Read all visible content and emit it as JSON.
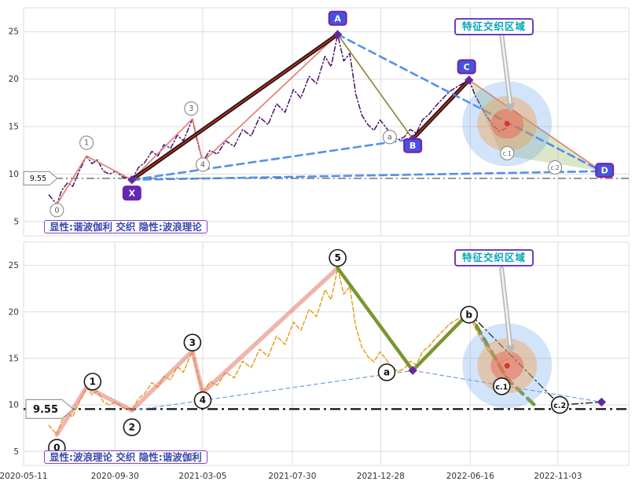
{
  "chart_data": {
    "type": "line",
    "title": "",
    "x_ticks": [
      {
        "label": "2020-05-11",
        "pos": 0
      },
      {
        "label": "2020-09-30",
        "pos": 15.1
      },
      {
        "label": "2021-03-05",
        "pos": 29.6
      },
      {
        "label": "2021-07-30",
        "pos": 44.4
      },
      {
        "label": "2021-12-28",
        "pos": 59.0
      },
      {
        "label": "2022-06-16",
        "pos": 73.8
      },
      {
        "label": "2022-11-03",
        "pos": 88.3
      }
    ],
    "y_ticks": [
      5,
      10,
      15,
      20,
      25
    ],
    "ylim": [
      3.5,
      27.5
    ],
    "reference_price": 9.55,
    "price": [
      [
        4.2,
        7.8
      ],
      [
        5.5,
        6.8
      ],
      [
        6.3,
        8.3
      ],
      [
        7.3,
        9.1
      ],
      [
        8.1,
        8.7
      ],
      [
        9.2,
        10.3
      ],
      [
        10.4,
        11.9
      ],
      [
        11.3,
        11.1
      ],
      [
        12.2,
        11.5
      ],
      [
        13.2,
        10.3
      ],
      [
        14.2,
        10.0
      ],
      [
        15.2,
        10.3
      ],
      [
        16.4,
        9.7
      ],
      [
        17.9,
        9.4
      ],
      [
        19.0,
        10.7
      ],
      [
        20.0,
        11.2
      ],
      [
        21.2,
        12.4
      ],
      [
        22.2,
        11.9
      ],
      [
        23.2,
        13.1
      ],
      [
        24.3,
        12.7
      ],
      [
        25.4,
        14.1
      ],
      [
        26.4,
        13.5
      ],
      [
        27.9,
        15.8
      ],
      [
        28.6,
        13.7
      ],
      [
        29.6,
        11.3
      ],
      [
        30.8,
        12.5
      ],
      [
        32.0,
        12.1
      ],
      [
        33.4,
        13.5
      ],
      [
        34.8,
        12.9
      ],
      [
        36.2,
        14.7
      ],
      [
        37.6,
        14.0
      ],
      [
        39.0,
        16.0
      ],
      [
        40.4,
        15.2
      ],
      [
        41.8,
        17.4
      ],
      [
        43.2,
        16.5
      ],
      [
        44.6,
        18.9
      ],
      [
        45.8,
        18.0
      ],
      [
        47.2,
        20.3
      ],
      [
        48.4,
        19.5
      ],
      [
        49.8,
        22.4
      ],
      [
        50.8,
        21.3
      ],
      [
        51.9,
        24.7
      ],
      [
        52.9,
        21.9
      ],
      [
        53.9,
        22.7
      ],
      [
        54.9,
        18.4
      ],
      [
        55.9,
        16.2
      ],
      [
        56.9,
        15.2
      ],
      [
        57.9,
        14.6
      ],
      [
        58.9,
        15.7
      ],
      [
        59.9,
        14.9
      ],
      [
        60.9,
        14.0
      ],
      [
        61.9,
        13.6
      ],
      [
        62.9,
        13.9
      ],
      [
        63.9,
        14.7
      ],
      [
        64.9,
        14.3
      ],
      [
        65.9,
        15.7
      ],
      [
        67.0,
        16.3
      ],
      [
        68.0,
        17.1
      ],
      [
        69.2,
        17.9
      ],
      [
        70.4,
        18.7
      ],
      [
        71.9,
        19.3
      ],
      [
        73.6,
        19.9
      ],
      [
        74.6,
        18.3
      ],
      [
        75.6,
        17.1
      ],
      [
        76.6,
        16.0
      ],
      [
        77.6,
        15.1
      ],
      [
        78.6,
        14.5
      ],
      [
        79.9,
        14.9
      ]
    ],
    "colors": {
      "price_top": "#45106e",
      "price_bottom": "#e6a023",
      "impulse_salmon": "#e2796a",
      "black_trend": "#161616",
      "red_core": "#cc2a1e",
      "blue_dashed": "#4285e8",
      "blue_thin": "#6a96cf",
      "green_overlay": "#74942c",
      "green_fill": "rgba(140,175,80,0.30)",
      "marker_purple": "#5a2ca0",
      "box_blue": "#4553dd",
      "box_purple": "#5e2bb8",
      "purple_border": "#7b1fa2",
      "teal": "#00a6b8",
      "caption_blue": "#3949ab",
      "feature_outer": "rgba(105,165,235,0.30)",
      "feature_mid": "rgba(245,152,62,0.38)",
      "feature_inner": "rgba(236,92,78,0.45)",
      "feature_dot": "#d6372b",
      "grid": "#dcdcdc",
      "axis_text": "#333333",
      "ref_line": "#444444"
    },
    "panels": [
      {
        "name": "harmonic-explicit-panel",
        "price_style": "purple-dashdot",
        "caption": "显性:谐波伽利 交织 隐性:波浪理论",
        "feature_label": "特征交织区域",
        "feature_center": {
          "x": 79.9,
          "v": 15.3
        },
        "lines": [
          {
            "style": "salmon-thin",
            "points": [
              [
                5.5,
                6.8
              ],
              [
                10.4,
                11.9
              ],
              [
                17.9,
                9.4
              ],
              [
                27.9,
                15.8
              ],
              [
                29.6,
                11.3
              ],
              [
                51.9,
                24.7
              ],
              [
                64.3,
                13.7
              ],
              [
                73.6,
                19.9
              ],
              [
                95.5,
                10.3
              ]
            ]
          },
          {
            "style": "green-thin",
            "points": [
              [
                51.9,
                24.7
              ],
              [
                64.3,
                13.7
              ]
            ]
          },
          {
            "style": "black-thick",
            "points": [
              [
                17.9,
                9.4
              ],
              [
                51.9,
                24.7
              ]
            ]
          },
          {
            "style": "red-core",
            "points": [
              [
                17.9,
                9.4
              ],
              [
                51.9,
                24.7
              ]
            ]
          },
          {
            "style": "black-thick",
            "points": [
              [
                64.3,
                13.7
              ],
              [
                73.6,
                19.9
              ]
            ]
          },
          {
            "style": "red-core",
            "points": [
              [
                64.3,
                13.7
              ],
              [
                73.6,
                19.9
              ]
            ]
          },
          {
            "style": "blue-dash",
            "points": [
              [
                17.9,
                9.4
              ],
              [
                64.3,
                13.7
              ]
            ]
          },
          {
            "style": "blue-dash",
            "points": [
              [
                17.9,
                9.4
              ],
              [
                95.5,
                10.3
              ]
            ]
          },
          {
            "style": "blue-dash",
            "points": [
              [
                51.9,
                24.7
              ],
              [
                95.5,
                10.3
              ]
            ]
          }
        ],
        "polygons": [
          {
            "style": "green-fill",
            "points": [
              [
                73.6,
                19.9
              ],
              [
                95.5,
                10.3
              ],
              [
                79.0,
                12.0
              ]
            ]
          }
        ],
        "diamonds": [
          [
            17.9,
            9.4
          ],
          [
            51.9,
            24.7
          ],
          [
            64.3,
            13.7
          ],
          [
            73.6,
            19.9
          ],
          [
            95.5,
            10.3
          ]
        ],
        "labels": [
          {
            "text": "0",
            "x": 5.5,
            "v": 6.2,
            "style": "circle-sm"
          },
          {
            "text": "1",
            "x": 10.4,
            "v": 13.3,
            "style": "circle-sm"
          },
          {
            "text": "3",
            "x": 27.7,
            "v": 16.9,
            "style": "circle-sm"
          },
          {
            "text": "4",
            "x": 29.6,
            "v": 11.0,
            "style": "circle-sm"
          },
          {
            "text": "a",
            "x": 60.5,
            "v": 13.9,
            "style": "circle-sm"
          },
          {
            "text": "c.1",
            "x": 79.9,
            "v": 12.2,
            "style": "circle-sm"
          },
          {
            "text": "c.2",
            "x": 87.8,
            "v": 10.7,
            "style": "circle-sm"
          },
          {
            "text": "X",
            "x": 17.9,
            "v": 8.0,
            "style": "box-purple"
          },
          {
            "text": "A",
            "x": 51.9,
            "v": 26.4,
            "style": "box-blue"
          },
          {
            "text": "B",
            "x": 64.3,
            "v": 13.0,
            "style": "box-blue"
          },
          {
            "text": "C",
            "x": 73.2,
            "v": 21.3,
            "style": "box-blue"
          },
          {
            "text": "D",
            "x": 96.0,
            "v": 10.4,
            "style": "box-blue"
          }
        ]
      },
      {
        "name": "elliott-explicit-panel",
        "price_style": "orange-dash",
        "caption": "显性:波浪理论 交织 隐性:谐波伽利",
        "feature_label": "特征交织区域",
        "feature_center": {
          "x": 79.9,
          "v": 14.2
        },
        "lines": [
          {
            "style": "salmon-thick",
            "points": [
              [
                5.5,
                6.8
              ],
              [
                10.4,
                11.9
              ],
              [
                17.9,
                9.4
              ],
              [
                27.9,
                15.8
              ],
              [
                29.6,
                11.3
              ],
              [
                51.9,
                24.7
              ]
            ]
          },
          {
            "style": "salmon-thin",
            "points": [
              [
                51.9,
                24.7
              ],
              [
                64.3,
                13.7
              ],
              [
                73.6,
                19.9
              ],
              [
                79.9,
                12.8
              ]
            ]
          },
          {
            "style": "green-thick",
            "points": [
              [
                51.9,
                24.7
              ],
              [
                64.3,
                13.7
              ],
              [
                73.6,
                19.9
              ]
            ]
          },
          {
            "style": "green-thick-dash",
            "points": [
              [
                73.6,
                19.9
              ],
              [
                79.9,
                12.8
              ],
              [
                84.4,
                10.0
              ]
            ]
          },
          {
            "style": "blue-thin-dash",
            "points": [
              [
                17.9,
                9.4
              ],
              [
                64.3,
                13.7
              ],
              [
                95.5,
                10.3
              ]
            ]
          },
          {
            "style": "black-dashdot",
            "points": [
              [
                73.6,
                19.9
              ],
              [
                88.6,
                10.0
              ],
              [
                95.5,
                10.3
              ]
            ]
          }
        ],
        "polygons": [],
        "diamonds": [
          [
            64.3,
            13.7
          ],
          [
            95.5,
            10.3
          ]
        ],
        "labels": [
          {
            "text": "0",
            "x": 5.5,
            "v": 5.4,
            "style": "circle-lg"
          },
          {
            "text": "1",
            "x": 11.4,
            "v": 12.5,
            "style": "circle-lg"
          },
          {
            "text": "2",
            "x": 17.9,
            "v": 7.6,
            "style": "circle-lg"
          },
          {
            "text": "3",
            "x": 27.9,
            "v": 16.7,
            "style": "circle-lg"
          },
          {
            "text": "4",
            "x": 29.6,
            "v": 10.5,
            "style": "circle-lg"
          },
          {
            "text": "5",
            "x": 51.9,
            "v": 25.8,
            "style": "circle-lg"
          },
          {
            "text": "a",
            "x": 60.0,
            "v": 13.5,
            "style": "circle-lg"
          },
          {
            "text": "b",
            "x": 73.6,
            "v": 19.7,
            "style": "circle-lg"
          },
          {
            "text": "c.1",
            "x": 79.0,
            "v": 12.0,
            "style": "circle-lg"
          },
          {
            "text": "c.2",
            "x": 88.6,
            "v": 10.0,
            "style": "circle-lg"
          }
        ]
      }
    ]
  }
}
